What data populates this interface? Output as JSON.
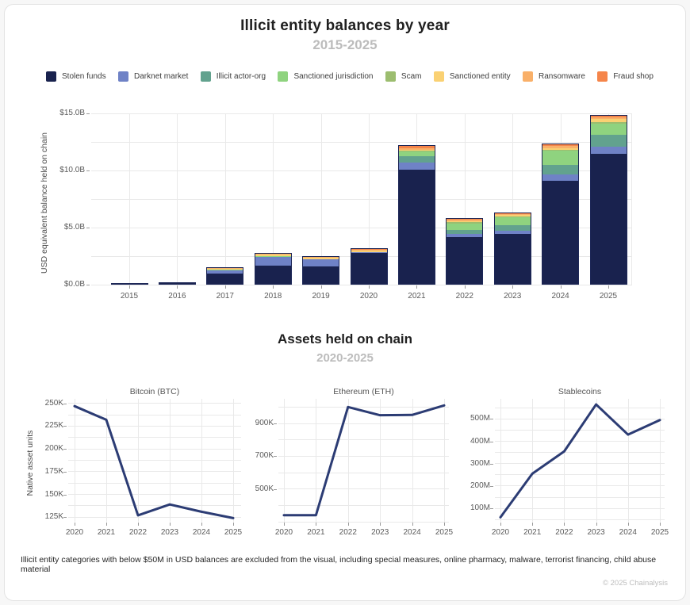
{
  "header": {
    "title": "Illicit entity balances by year",
    "subtitle": "2015-2025"
  },
  "section2": {
    "title": "Assets held on chain",
    "subtitle": "2020-2025"
  },
  "legend": {
    "items": [
      {
        "label": "Stolen funds",
        "color": "#19224e"
      },
      {
        "label": "Darknet market",
        "color": "#6f82c6"
      },
      {
        "label": "Illicit actor-org",
        "color": "#62a28e"
      },
      {
        "label": "Sanctioned jurisdiction",
        "color": "#8fd37f"
      },
      {
        "label": "Scam",
        "color": "#9cbd6f"
      },
      {
        "label": "Sanctioned entity",
        "color": "#fad173"
      },
      {
        "label": "Ransomware",
        "color": "#f9b069"
      },
      {
        "label": "Fraud shop",
        "color": "#f5854a"
      }
    ]
  },
  "chart_data": [
    {
      "type": "bar",
      "stacked": true,
      "title": "Illicit entity balances by year",
      "subtitle": "2015-2025",
      "ylabel": "USD equivalent balance held on chain",
      "unit": "USD billions",
      "ylim": [
        0,
        15
      ],
      "grid_step": 2.5,
      "yticks": [
        {
          "v": 0,
          "label": "$0.0B"
        },
        {
          "v": 5,
          "label": "$5.0B"
        },
        {
          "v": 10,
          "label": "$10.0B"
        },
        {
          "v": 15,
          "label": "$15.0B"
        }
      ],
      "categories": [
        "2015",
        "2016",
        "2017",
        "2018",
        "2019",
        "2020",
        "2021",
        "2022",
        "2023",
        "2024",
        "2025"
      ],
      "series": [
        {
          "name": "Stolen funds",
          "color": "#19224e",
          "values": [
            0.05,
            0.18,
            1.0,
            1.65,
            1.6,
            2.8,
            10.1,
            4.2,
            4.5,
            9.1,
            11.5
          ]
        },
        {
          "name": "Darknet market",
          "color": "#6f82c6",
          "values": [
            0,
            0.02,
            0.3,
            0.85,
            0.65,
            0.12,
            0.65,
            0.28,
            0.27,
            0.6,
            0.6
          ]
        },
        {
          "name": "Illicit actor-org",
          "color": "#62a28e",
          "values": [
            0,
            0,
            0,
            0,
            0,
            0,
            0.55,
            0.35,
            0.48,
            0.85,
            1.05
          ]
        },
        {
          "name": "Sanctioned jurisdiction",
          "color": "#8fd37f",
          "values": [
            0,
            0,
            0.07,
            0.08,
            0.05,
            0,
            0.4,
            0.6,
            0.7,
            1.25,
            1.0
          ]
        },
        {
          "name": "Scam",
          "color": "#9cbd6f",
          "values": [
            0,
            0,
            0,
            0,
            0,
            0,
            0.1,
            0.1,
            0.1,
            0.1,
            0.15
          ]
        },
        {
          "name": "Sanctioned entity",
          "color": "#fad173",
          "values": [
            0,
            0,
            0.1,
            0.12,
            0.12,
            0.15,
            0.05,
            0.12,
            0.12,
            0.1,
            0.25
          ]
        },
        {
          "name": "Ransomware",
          "color": "#f9b069",
          "values": [
            0,
            0,
            0.03,
            0.05,
            0.08,
            0.08,
            0.15,
            0.1,
            0.09,
            0.2,
            0.2
          ]
        },
        {
          "name": "Fraud shop",
          "color": "#f5854a",
          "values": [
            0,
            0,
            0,
            0,
            0,
            0.05,
            0.2,
            0.1,
            0.09,
            0.15,
            0.1
          ]
        }
      ]
    },
    {
      "type": "line",
      "title": "Bitcoin (BTC)",
      "ylabel": "Native asset units",
      "line_color": "#2c3c74",
      "x": [
        "2020",
        "2021",
        "2022",
        "2023",
        "2024",
        "2025"
      ],
      "values": [
        247000,
        232000,
        127000,
        139000,
        131000,
        124000
      ],
      "ylim": [
        120000,
        255000
      ],
      "grid_step": 12500,
      "yticks": [
        {
          "v": 125000,
          "label": "125K"
        },
        {
          "v": 150000,
          "label": "150K"
        },
        {
          "v": 175000,
          "label": "175K"
        },
        {
          "v": 200000,
          "label": "200K"
        },
        {
          "v": 225000,
          "label": "225K"
        },
        {
          "v": 250000,
          "label": "250K"
        }
      ]
    },
    {
      "type": "line",
      "title": "Ethereum (ETH)",
      "line_color": "#2c3c74",
      "x": [
        "2020",
        "2021",
        "2022",
        "2023",
        "2024",
        "2025"
      ],
      "values": [
        340000,
        340000,
        1000000,
        950000,
        952000,
        1010000
      ],
      "ylim": [
        300000,
        1050000
      ],
      "grid_step": 100000,
      "yticks": [
        {
          "v": 500000,
          "label": "500K"
        },
        {
          "v": 700000,
          "label": "700K"
        },
        {
          "v": 900000,
          "label": "900K"
        }
      ]
    },
    {
      "type": "line",
      "title": "Stablecoins",
      "line_color": "#2c3c74",
      "x": [
        "2020",
        "2021",
        "2022",
        "2023",
        "2024",
        "2025"
      ],
      "values": [
        60000000,
        255000000,
        355000000,
        565000000,
        430000000,
        495000000
      ],
      "ylim": [
        40000000,
        590000000
      ],
      "grid_step": 50000000,
      "yticks": [
        {
          "v": 100000000,
          "label": "100M"
        },
        {
          "v": 200000000,
          "label": "200M"
        },
        {
          "v": 300000000,
          "label": "300M"
        },
        {
          "v": 400000000,
          "label": "400M"
        },
        {
          "v": 500000000,
          "label": "500M"
        }
      ]
    }
  ],
  "footnote": "Illicit entity categories with below $50M in USD balances are excluded from the visual, including special measures, online pharmacy, malware, terrorist financing, child abuse material",
  "copyright": "© 2025 Chainalysis"
}
